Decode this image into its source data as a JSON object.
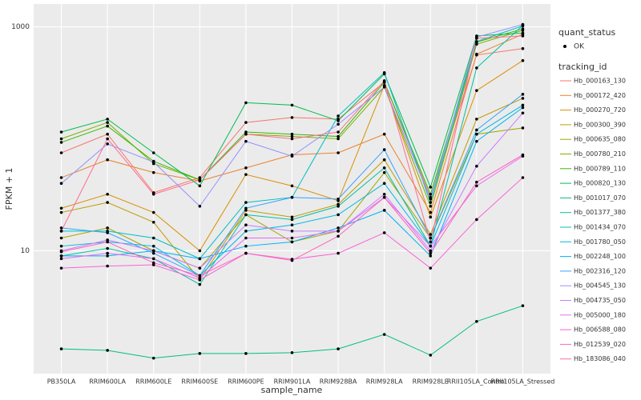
{
  "chart_data": {
    "type": "line",
    "y_scale": "log",
    "grid": true,
    "x_label": "sample_name",
    "y_label": "FPKM + 1",
    "point_legend_title": "quant_status",
    "point_legend_label": "OK",
    "legend_title": "tracking_id",
    "legend_position": "right",
    "categories": [
      "PB350LA",
      "RRIM600LA",
      "RRIM600LE",
      "RRIM600SE",
      "RRIM600PE",
      "RRIM901LA",
      "RRIM928BA",
      "RRIM928LA",
      "RRIM928LE",
      "RRII105LA_Control",
      "RRII105LA_Stressed"
    ],
    "ylim": [
      0.8,
      1600
    ],
    "yticks": [
      10,
      1000
    ],
    "series": [
      {
        "name": "Hb_000163_130",
        "color": "#F8766D",
        "values": [
          75,
          110,
          33,
          45,
          140,
          155,
          150,
          320,
          30,
          560,
          640
        ]
      },
      {
        "name": "Hb_000172_420",
        "color": "#EA8331",
        "values": [
          45,
          65,
          50,
          42,
          55,
          72,
          75,
          110,
          22,
          570,
          860
        ]
      },
      {
        "name": "Hb_000270_720",
        "color": "#D89000",
        "values": [
          24,
          32,
          22,
          10,
          48,
          38,
          28,
          300,
          20,
          270,
          500
        ]
      },
      {
        "name": "Hb_000300_390",
        "color": "#C09B00",
        "values": [
          22,
          27,
          18,
          5.5,
          23,
          20,
          26,
          65,
          14,
          150,
          230
        ]
      },
      {
        "name": "Hb_000635_080",
        "color": "#A3A500",
        "values": [
          13,
          16,
          10,
          7,
          21,
          12,
          15,
          50,
          13,
          110,
          125
        ]
      },
      {
        "name": "Hb_000780_210",
        "color": "#7CAE00",
        "values": [
          100,
          140,
          60,
          43,
          110,
          105,
          100,
          290,
          25,
          700,
          930
        ]
      },
      {
        "name": "Hb_000789_110",
        "color": "#39B600",
        "values": [
          93,
          130,
          63,
          43,
          115,
          110,
          105,
          320,
          32,
          730,
          960
        ]
      },
      {
        "name": "Hb_000820_130",
        "color": "#00BB4E",
        "values": [
          115,
          150,
          75,
          38,
          210,
          200,
          145,
          380,
          37,
          830,
          880
        ]
      },
      {
        "name": "Hb_001017_070",
        "color": "#00BF7D",
        "values": [
          1.33,
          1.29,
          1.1,
          1.21,
          1.21,
          1.23,
          1.33,
          1.79,
          1.17,
          2.34,
          3.23
        ]
      },
      {
        "name": "Hb_001377_380",
        "color": "#00C1A3",
        "values": [
          9,
          10.5,
          8.5,
          5,
          21,
          19,
          25,
          55,
          11,
          430,
          1030
        ]
      },
      {
        "name": "Hb_001434_070",
        "color": "#00BFC4",
        "values": [
          15,
          15,
          13,
          8.5,
          27,
          30,
          160,
          390,
          27,
          740,
          1020
        ]
      },
      {
        "name": "Hb_001780_050",
        "color": "#00BAE0",
        "values": [
          11,
          12,
          11,
          6,
          15,
          17,
          21,
          40,
          11,
          110,
          200
        ]
      },
      {
        "name": "Hb_002248_100",
        "color": "#00B0F6",
        "values": [
          9,
          9,
          10,
          8.5,
          11,
          12,
          16,
          23,
          9,
          95,
          190
        ]
      },
      {
        "name": "Hb_002316_120",
        "color": "#35A2FF",
        "values": [
          16,
          14.5,
          9.5,
          6,
          24,
          30,
          29,
          80,
          13,
          120,
          250
        ]
      },
      {
        "name": "Hb_004545_130",
        "color": "#9590FF",
        "values": [
          40,
          90,
          62,
          25,
          95,
          70,
          135,
          290,
          29,
          810,
          1050
        ]
      },
      {
        "name": "Hb_004735_050",
        "color": "#C77CFF",
        "values": [
          10,
          12.5,
          10,
          7,
          17,
          15,
          15,
          32,
          10,
          57,
          170
        ]
      },
      {
        "name": "Hb_005000_180",
        "color": "#E76BF3",
        "values": [
          8.5,
          9.5,
          8.5,
          5.7,
          13,
          13,
          15,
          30,
          11,
          38,
          70
        ]
      },
      {
        "name": "Hb_006588_080",
        "color": "#FA62DB",
        "values": [
          7,
          7.3,
          7.5,
          5.5,
          9.5,
          8.4,
          9.5,
          14.5,
          7,
          19,
          45
        ]
      },
      {
        "name": "Hb_012539_020",
        "color": "#FF62BC",
        "values": [
          9.8,
          12,
          7.8,
          6,
          9.5,
          8.2,
          13.5,
          30,
          9.5,
          41,
          72
        ]
      },
      {
        "name": "Hb_183086_040",
        "color": "#FF6C91",
        "values": [
          15,
          100,
          32,
          43,
          110,
          100,
          115,
          330,
          12,
          790,
          830
        ]
      }
    ]
  }
}
